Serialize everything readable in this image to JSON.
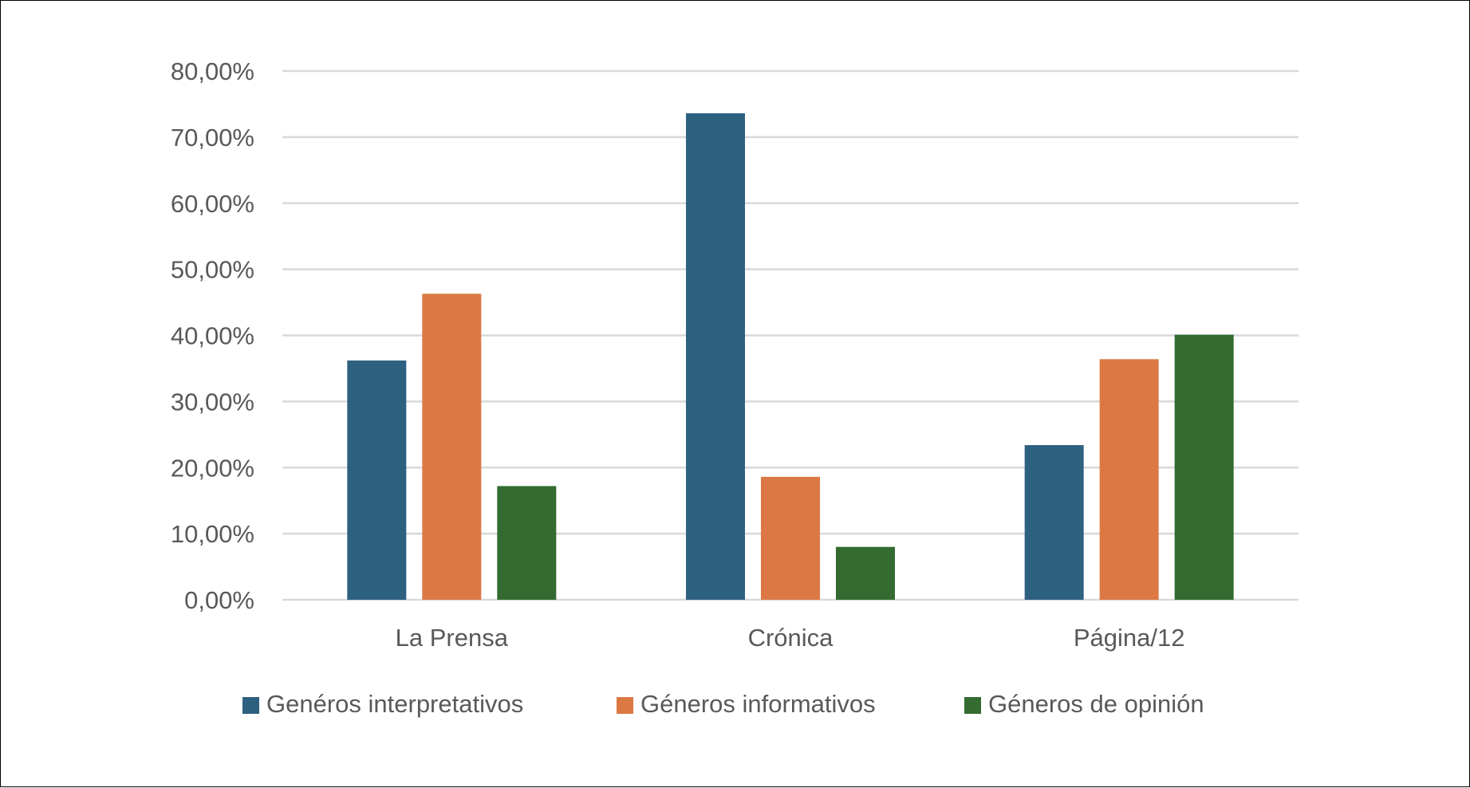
{
  "chart_data": {
    "type": "bar",
    "title": "",
    "xlabel": "",
    "ylabel": "",
    "categories": [
      "La Prensa",
      "Crónica",
      "Página/12"
    ],
    "series": [
      {
        "name": "Genéros interpretativos",
        "color": "#2e6080",
        "values": [
          36.2,
          73.6,
          23.4
        ]
      },
      {
        "name": "Géneros informativos",
        "color": "#dc7843",
        "values": [
          46.3,
          18.6,
          36.4
        ]
      },
      {
        "name": "Géneros de opinión",
        "color": "#336b30",
        "values": [
          17.2,
          8.0,
          40.1
        ]
      }
    ],
    "ylim": [
      0,
      80
    ],
    "yticks": [
      "0,00%",
      "10,00%",
      "20,00%",
      "30,00%",
      "40,00%",
      "50,00%",
      "60,00%",
      "70,00%",
      "80,00%"
    ],
    "grid": true,
    "legend_position": "bottom"
  }
}
